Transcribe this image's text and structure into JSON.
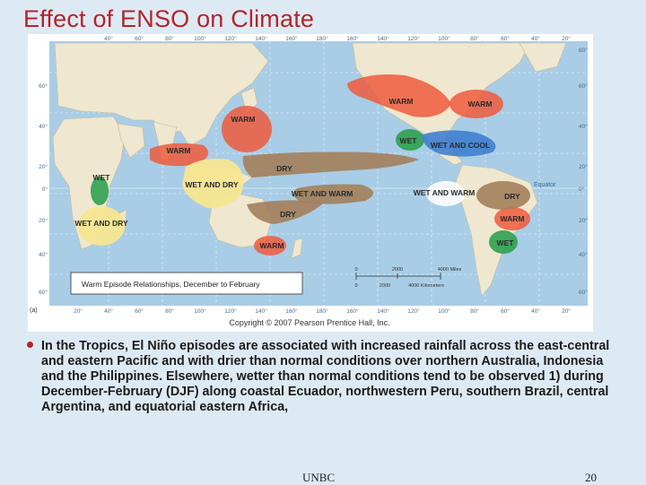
{
  "slide": {
    "title": "Effect of ENSO on Climate",
    "footer_left": "UNBC",
    "page_number": "20"
  },
  "map": {
    "panel_label": "(a)",
    "legend_title": "Warm Episode Relationships, December to February",
    "copyright": "Copyright © 2007 Pearson Prentice Hall, Inc.",
    "equator_label": "Equator",
    "longitude_labels_top": [
      "40°",
      "60°",
      "80°",
      "100°",
      "120°",
      "140°",
      "160°",
      "180°",
      "160°",
      "140°",
      "120°",
      "100°",
      "80°",
      "60°",
      "40°",
      "20°"
    ],
    "longitude_labels_bottom": [
      "20°",
      "40°",
      "60°",
      "80°",
      "100°",
      "120°",
      "140°",
      "160°",
      "180°",
      "160°",
      "140°",
      "120°",
      "100°",
      "80°",
      "60°",
      "40°",
      "20°"
    ],
    "latitude_labels_left": [
      "60°",
      "40°",
      "20°",
      "0°",
      "20°",
      "40°",
      "60°"
    ],
    "latitude_labels_right": [
      "80°",
      "60°",
      "40°",
      "20°",
      "0°",
      "20°",
      "40°",
      "60°"
    ],
    "scale": {
      "miles_values": [
        "0",
        "2000",
        "4000 Miles"
      ],
      "km_values": [
        "0",
        "2000",
        "4000 Kilometers"
      ]
    },
    "regions": [
      {
        "label": "WARM",
        "color": "#ee5a3c"
      },
      {
        "label": "WARM",
        "color": "#ee5a3c"
      },
      {
        "label": "WARM",
        "color": "#ee5a3c"
      },
      {
        "label": "WARM",
        "color": "#ee5a3c"
      },
      {
        "label": "WARM",
        "color": "#ee5a3c"
      },
      {
        "label": "WARM",
        "color": "#ee5a3c"
      },
      {
        "label": "WET",
        "color": "#2ea14f"
      },
      {
        "label": "WET AND COOL",
        "color": "#3f7fd0"
      },
      {
        "label": "WET",
        "color": "#2ea14f"
      },
      {
        "label": "WET",
        "color": "#2ea14f"
      },
      {
        "label": "WET AND DRY",
        "color": "#f6e690"
      },
      {
        "label": "WET AND DRY",
        "color": "#f6e690"
      },
      {
        "label": "DRY",
        "color": "#a3805a"
      },
      {
        "label": "DRY",
        "color": "#a3805a"
      },
      {
        "label": "DRY",
        "color": "#a3805a"
      },
      {
        "label": "WET AND WARM",
        "color": "#a3805a"
      },
      {
        "label": "WET AND WARM",
        "color": "#ffffff"
      }
    ]
  },
  "bullet": {
    "text": "In the Tropics, El Niño episodes are associated with increased rainfall across the east-central and eastern Pacific and with drier than normal conditions over northern Australia, Indonesia and the Philippines. Elsewhere, wetter than normal conditions tend to be observed 1) during December-February (DJF) along coastal Ecuador, northwestern Peru, southern Brazil, central Argentina, and equatorial eastern Africa,"
  }
}
